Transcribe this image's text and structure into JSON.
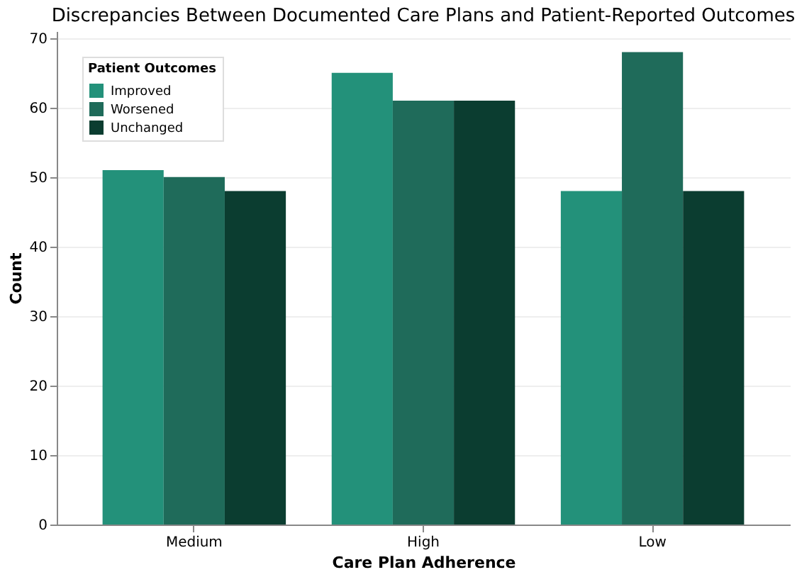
{
  "chart_data": {
    "type": "bar",
    "title": "Discrepancies Between Documented Care Plans and Patient-Reported Outcomes",
    "xlabel": "Care Plan Adherence",
    "ylabel": "Count",
    "legend_title": "Patient Outcomes",
    "categories": [
      "Medium",
      "High",
      "Low"
    ],
    "series": [
      {
        "name": "Improved",
        "color": "#23917a",
        "values": [
          51,
          65,
          48
        ]
      },
      {
        "name": "Worsened",
        "color": "#1f6b5a",
        "values": [
          50,
          61,
          68
        ]
      },
      {
        "name": "Unchanged",
        "color": "#0b3d30",
        "values": [
          48,
          61,
          48
        ]
      }
    ],
    "ylim": [
      0,
      71
    ],
    "yticks": [
      0,
      10,
      20,
      30,
      40,
      50,
      60,
      70
    ],
    "grid": "y",
    "legend": "top left"
  }
}
